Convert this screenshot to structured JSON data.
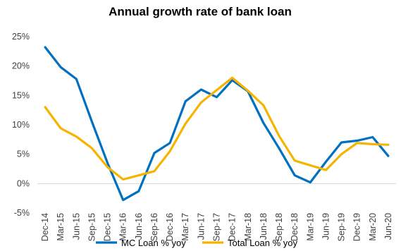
{
  "chart_data": {
    "type": "line",
    "title": "Annual growth rate of bank loan",
    "xlabel": "",
    "ylabel": "",
    "ylim": [
      -5,
      25
    ],
    "y_ticks": [
      "25%",
      "20%",
      "15%",
      "10%",
      "5%",
      "0%",
      "-5%"
    ],
    "y_tick_values": [
      25,
      20,
      15,
      10,
      5,
      0,
      -5
    ],
    "categories": [
      "Dec-14",
      "Mar-15",
      "Jun-15",
      "Sep-15",
      "Dec-15",
      "Mar-16",
      "Jun-16",
      "Sep-16",
      "Dec-16",
      "Mar-17",
      "Jun-17",
      "Sep-17",
      "Dec-17",
      "Mar-18",
      "Jun-18",
      "Sep-18",
      "Dec-18",
      "Mar-19",
      "Jun-19",
      "Sep-19",
      "Dec-19",
      "Mar-20",
      "Jun-20"
    ],
    "series": [
      {
        "name": "MC Loan % yoy",
        "color": "#0070C0",
        "values": [
          23.2,
          19.8,
          17.8,
          10.5,
          3.5,
          -2.8,
          -1.3,
          5.2,
          6.9,
          14.0,
          16.0,
          14.7,
          17.6,
          15.7,
          10.3,
          6.0,
          1.4,
          0.2,
          3.7,
          7.0,
          7.3,
          7.9,
          4.7
        ]
      },
      {
        "name": "Total Loan % yoy",
        "color": "#F5B400",
        "values": [
          13.0,
          9.4,
          8.0,
          6.0,
          2.8,
          0.7,
          1.4,
          2.1,
          5.5,
          10.2,
          13.8,
          15.9,
          18.0,
          15.8,
          13.3,
          8.1,
          3.9,
          3.1,
          2.3,
          5.0,
          6.9,
          6.7,
          6.6
        ]
      }
    ],
    "grid": false,
    "legend": "bottom"
  }
}
